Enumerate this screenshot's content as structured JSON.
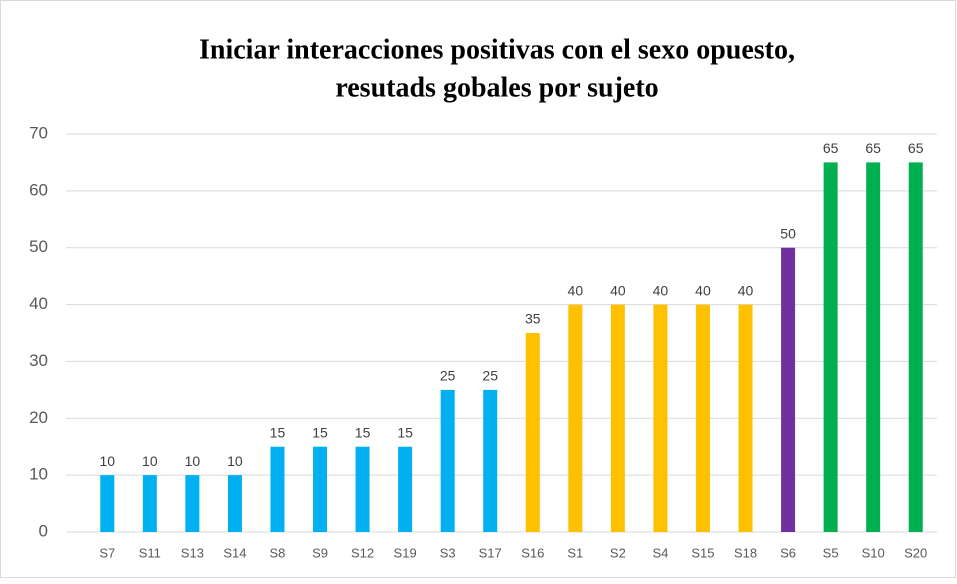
{
  "chart_data": {
    "type": "bar",
    "title": [
      "Iniciar interacciones positivas con el sexo opuesto,",
      "resutads gobales por sujeto"
    ],
    "categories": [
      "S7",
      "S11",
      "S13",
      "S14",
      "S8",
      "S9",
      "S12",
      "S19",
      "S3",
      "S17",
      "S16",
      "S1",
      "S2",
      "S4",
      "S15",
      "S18",
      "S6",
      "S5",
      "S10",
      "S20"
    ],
    "values": [
      10,
      10,
      10,
      10,
      15,
      15,
      15,
      15,
      25,
      25,
      35,
      40,
      40,
      40,
      40,
      40,
      50,
      65,
      65,
      65
    ],
    "colors": [
      "#00b0f0",
      "#00b0f0",
      "#00b0f0",
      "#00b0f0",
      "#00b0f0",
      "#00b0f0",
      "#00b0f0",
      "#00b0f0",
      "#00b0f0",
      "#00b0f0",
      "#ffc000",
      "#ffc000",
      "#ffc000",
      "#ffc000",
      "#ffc000",
      "#ffc000",
      "#7030a0",
      "#00b050",
      "#00b050",
      "#00b050"
    ],
    "ylim": [
      0,
      70
    ],
    "yticks": [
      0,
      10,
      20,
      30,
      40,
      50,
      60,
      70
    ],
    "grid": true
  }
}
